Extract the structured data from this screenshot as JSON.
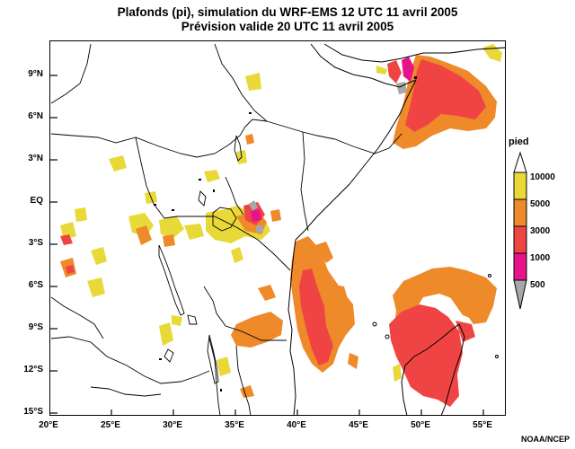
{
  "title": {
    "line1": "Plafonds (pi), simulation du WRF-EMS 12 UTC 11 avril 2005",
    "line2": "Prévision valide 20 UTC 11 avril 2005"
  },
  "axes": {
    "lat_labels": [
      "9°N",
      "6°N",
      "3°N",
      "EQ",
      "3°S",
      "6°S",
      "9°S",
      "12°S",
      "15°S"
    ],
    "lon_labels": [
      "20°E",
      "25°E",
      "30°E",
      "35°E",
      "40°E",
      "45°E",
      "50°E",
      "55°E"
    ]
  },
  "legend": {
    "title": "pied",
    "items": [
      {
        "label": "10000",
        "color": "#e8d838"
      },
      {
        "label": "5000",
        "color": "#ee8a2a"
      },
      {
        "label": "3000",
        "color": "#f04444"
      },
      {
        "label": "1000",
        "color": "#e8128c"
      },
      {
        "label": "500",
        "color": "#a8a8a8"
      }
    ]
  },
  "credit": "NOAA/NCEP"
}
